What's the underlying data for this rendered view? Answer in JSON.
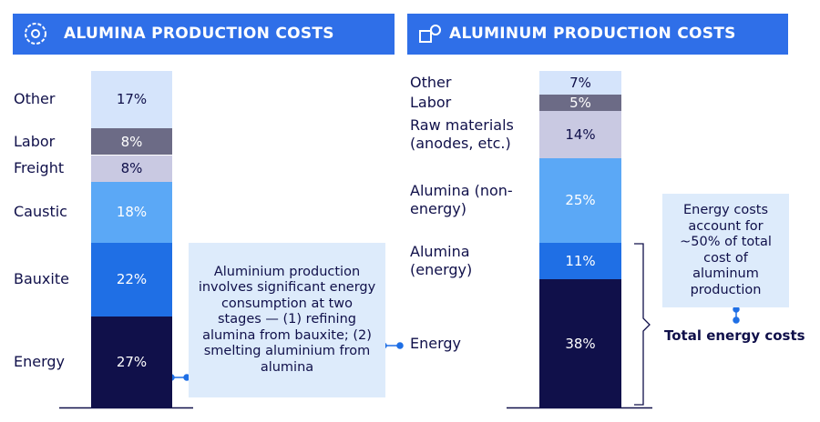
{
  "chart_data": [
    {
      "type": "bar",
      "stacked": true,
      "title": "ALUMINA PRODUCTION COSTS",
      "categories": [
        "Energy",
        "Bauxite",
        "Caustic",
        "Freight",
        "Labor",
        "Other"
      ],
      "values": [
        27,
        22,
        18,
        8,
        8,
        17
      ],
      "value_labels": [
        "27%",
        "22%",
        "18%",
        "8%",
        "8%",
        "17%"
      ],
      "colors": [
        "#10104a",
        "#1f6fe5",
        "#5ba8f6",
        "#c9c9e2",
        "#6c6b86",
        "#d5e4fb"
      ]
    },
    {
      "type": "bar",
      "stacked": true,
      "title": "ALUMINUM PRODUCTION COSTS",
      "categories": [
        "Energy",
        "Alumina (energy)",
        "Alumina (non-energy)",
        "Raw materials (anodes, etc.)",
        "Labor",
        "Other"
      ],
      "values": [
        38,
        11,
        25,
        14,
        5,
        7
      ],
      "value_labels": [
        "38%",
        "11%",
        "25%",
        "14%",
        "5%",
        "7%"
      ],
      "colors": [
        "#10104a",
        "#1f6fe5",
        "#5ba8f6",
        "#c9c9e2",
        "#6c6b86",
        "#d5e4fb"
      ]
    }
  ],
  "annotations": [
    {
      "text": "Aluminium production involves significant energy consumption at two stages — (1) refining alumina from bauxite; (2) smelting aluminium from alumina"
    },
    {
      "text": "Energy costs account for ~50% of total cost of aluminum production"
    },
    {
      "text": "Total energy costs"
    }
  ]
}
